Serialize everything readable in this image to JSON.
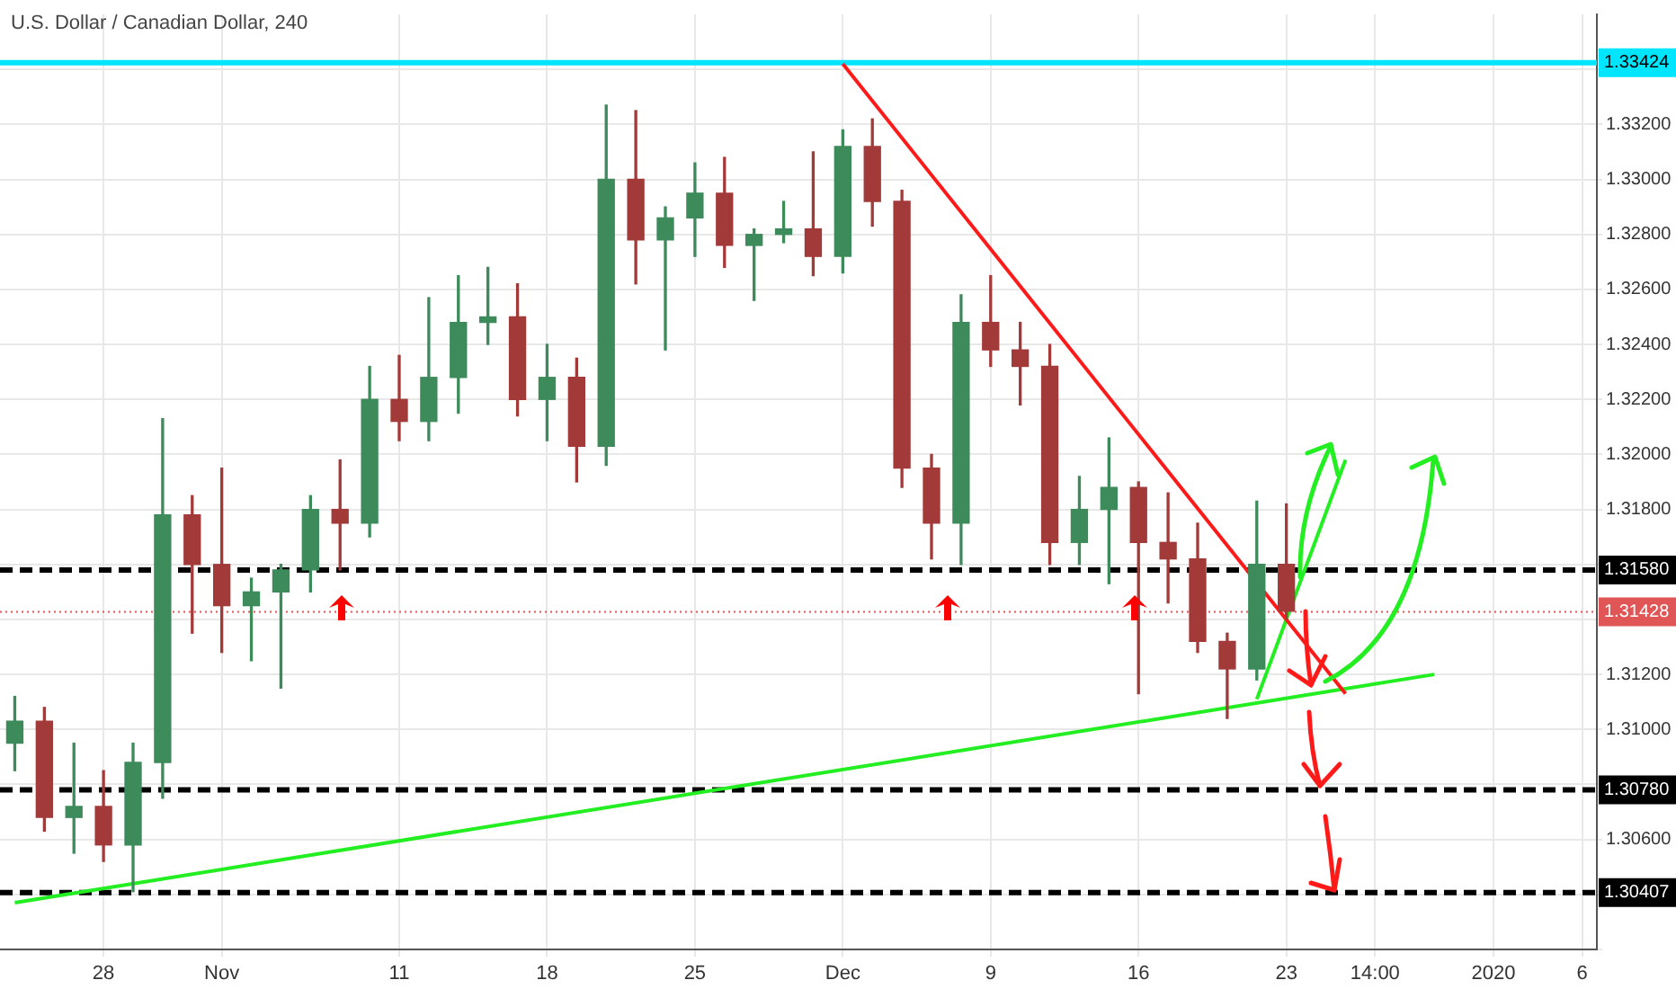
{
  "chart_data": {
    "type": "candlestick",
    "title": "U.S. Dollar / Canadian Dollar, 240",
    "categories": [
      null,
      null,
      null,
      "28",
      null,
      null,
      null,
      "Nov",
      null,
      null,
      null,
      null,
      null,
      "11",
      null,
      null,
      null,
      null,
      "18",
      null,
      null,
      null,
      null,
      "25",
      null,
      null,
      null,
      null,
      "Dec",
      null,
      null,
      null,
      null,
      "9",
      null,
      null,
      null,
      null,
      "16",
      null,
      null,
      null,
      null,
      "23",
      null,
      null,
      "14:00",
      null,
      null,
      null,
      "2020",
      null,
      null,
      "6"
    ],
    "ohlc": [
      [
        1.3095,
        1.3112,
        1.3085,
        1.3103
      ],
      [
        1.3103,
        1.3108,
        1.3063,
        1.3068
      ],
      [
        1.3068,
        1.3095,
        1.3055,
        1.3072
      ],
      [
        1.3072,
        1.3085,
        1.3052,
        1.3058
      ],
      [
        1.3058,
        1.3095,
        1.3041,
        1.3088
      ],
      [
        1.3088,
        1.3213,
        1.3075,
        1.3178
      ],
      [
        1.3178,
        1.3185,
        1.3135,
        1.316
      ],
      [
        1.316,
        1.3195,
        1.3128,
        1.3145
      ],
      [
        1.3145,
        1.3155,
        1.3125,
        1.315
      ],
      [
        1.315,
        1.316,
        1.3115,
        1.3158
      ],
      [
        1.3158,
        1.3185,
        1.315,
        1.318
      ],
      [
        1.318,
        1.3198,
        1.3158,
        1.3175
      ],
      [
        1.3175,
        1.3232,
        1.317,
        1.322
      ],
      [
        1.322,
        1.3236,
        1.3205,
        1.3212
      ],
      [
        1.3212,
        1.3257,
        1.3205,
        1.3228
      ],
      [
        1.3228,
        1.3265,
        1.3215,
        1.3248
      ],
      [
        1.3248,
        1.3268,
        1.324,
        1.325
      ],
      [
        1.325,
        1.3262,
        1.3214,
        1.322
      ],
      [
        1.322,
        1.324,
        1.3205,
        1.3228
      ],
      [
        1.3228,
        1.3235,
        1.319,
        1.3203
      ],
      [
        1.3203,
        1.3327,
        1.3196,
        1.33
      ],
      [
        1.33,
        1.3325,
        1.3262,
        1.3278
      ],
      [
        1.3278,
        1.329,
        1.3238,
        1.3286
      ],
      [
        1.3286,
        1.3306,
        1.3272,
        1.3295
      ],
      [
        1.3295,
        1.3308,
        1.3268,
        1.3276
      ],
      [
        1.3276,
        1.3282,
        1.3256,
        1.328
      ],
      [
        1.328,
        1.3292,
        1.3277,
        1.3282
      ],
      [
        1.3282,
        1.331,
        1.3265,
        1.3272
      ],
      [
        1.3272,
        1.3318,
        1.3266,
        1.3312
      ],
      [
        1.3312,
        1.3322,
        1.3283,
        1.3292
      ],
      [
        1.3292,
        1.3296,
        1.3188,
        1.3195
      ],
      [
        1.3195,
        1.32,
        1.3162,
        1.3175
      ],
      [
        1.3175,
        1.3258,
        1.316,
        1.3248
      ],
      [
        1.3248,
        1.3265,
        1.3232,
        1.3238
      ],
      [
        1.3238,
        1.3248,
        1.3218,
        1.3232
      ],
      [
        1.3232,
        1.324,
        1.316,
        1.3168
      ],
      [
        1.3168,
        1.3192,
        1.316,
        1.318
      ],
      [
        1.318,
        1.3206,
        1.3153,
        1.3188
      ],
      [
        1.3188,
        1.319,
        1.3113,
        1.3168
      ],
      [
        1.3168,
        1.3186,
        1.3146,
        1.3162
      ],
      [
        1.3162,
        1.3175,
        1.3128,
        1.3132
      ],
      [
        1.3132,
        1.3135,
        1.3104,
        1.3122
      ],
      [
        1.3122,
        1.3183,
        1.3118,
        1.316
      ],
      [
        1.316,
        1.3182,
        1.314,
        1.3143
      ],
      null,
      null,
      null,
      null,
      null,
      null,
      null,
      null,
      null,
      null
    ],
    "colors": [
      "#3d8b5a",
      "#a33a3a",
      "#3d8b5a",
      "#a33a3a",
      "#3d8b5a",
      "#3d8b5a",
      "#a33a3a",
      "#a33a3a",
      "#3d8b5a",
      "#3d8b5a",
      "#3d8b5a",
      "#a33a3a",
      "#3d8b5a",
      "#a33a3a",
      "#3d8b5a",
      "#3d8b5a",
      "#3d8b5a",
      "#a33a3a",
      "#3d8b5a",
      "#a33a3a",
      "#3d8b5a",
      "#a33a3a",
      "#3d8b5a",
      "#3d8b5a",
      "#a33a3a",
      "#3d8b5a",
      "#3d8b5a",
      "#a33a3a",
      "#3d8b5a",
      "#a33a3a",
      "#a33a3a",
      "#a33a3a",
      "#3d8b5a",
      "#a33a3a",
      "#a33a3a",
      "#a33a3a",
      "#3d8b5a",
      "#3d8b5a",
      "#a33a3a",
      "#a33a3a",
      "#a33a3a",
      "#a33a3a",
      "#3d8b5a",
      "#a33a3a",
      null,
      null,
      null,
      null,
      null,
      null,
      null,
      null,
      null,
      null
    ],
    "series": [
      {
        "type": "line",
        "color": "#ff1a1a",
        "values": [
          null,
          null,
          null,
          null,
          null,
          null,
          null,
          null,
          null,
          null,
          null,
          null,
          null,
          null,
          null,
          null,
          null,
          null,
          null,
          null,
          null,
          null,
          null,
          null,
          null,
          null,
          null,
          null,
          1.3342,
          null,
          null,
          null,
          null,
          null,
          null,
          null,
          null,
          null,
          null,
          null,
          null,
          null,
          null,
          null,
          null,
          1.3113,
          null,
          null,
          null,
          null,
          null,
          null,
          null,
          null
        ]
      },
      {
        "type": "line",
        "color": "#22ee22",
        "values": [
          1.3037,
          null,
          null,
          null,
          null,
          null,
          null,
          null,
          null,
          null,
          null,
          null,
          null,
          null,
          null,
          null,
          null,
          null,
          null,
          null,
          null,
          null,
          null,
          null,
          null,
          null,
          null,
          null,
          null,
          null,
          null,
          null,
          null,
          null,
          null,
          null,
          null,
          null,
          null,
          null,
          null,
          null,
          null,
          null,
          null,
          null,
          null,
          null,
          1.312,
          null,
          null,
          null,
          null,
          null
        ]
      },
      {
        "type": "line",
        "color": "#22ee22",
        "values": [
          null,
          null,
          null,
          null,
          null,
          null,
          null,
          null,
          null,
          null,
          null,
          null,
          null,
          null,
          null,
          null,
          null,
          null,
          null,
          null,
          null,
          null,
          null,
          null,
          null,
          null,
          null,
          null,
          null,
          null,
          null,
          null,
          null,
          null,
          null,
          null,
          null,
          null,
          null,
          null,
          null,
          null,
          1.3111,
          null,
          null,
          1.3198,
          null,
          null,
          null,
          null,
          null,
          null,
          null,
          null
        ]
      }
    ],
    "ylim": [
      1.302,
      1.336
    ],
    "yticks": [
      {
        "value": 1.302,
        "label": null
      },
      {
        "value": 1.304,
        "label": null
      },
      {
        "value": 1.306,
        "label": "1.30600"
      },
      {
        "value": 1.308,
        "label": null
      },
      {
        "value": 1.31,
        "label": "1.31000"
      },
      {
        "value": 1.312,
        "label": "1.31200"
      },
      {
        "value": 1.314,
        "label": null
      },
      {
        "value": 1.316,
        "label": null
      },
      {
        "value": 1.318,
        "label": "1.31800"
      },
      {
        "value": 1.32,
        "label": "1.32000"
      },
      {
        "value": 1.322,
        "label": "1.32200"
      },
      {
        "value": 1.324,
        "label": "1.32400"
      },
      {
        "value": 1.326,
        "label": "1.32600"
      },
      {
        "value": 1.328,
        "label": "1.32800"
      },
      {
        "value": 1.33,
        "label": "1.33000"
      },
      {
        "value": 1.332,
        "label": "1.33200"
      },
      {
        "value": 1.334,
        "label": null
      }
    ],
    "grid": true,
    "ref_lines": [
      {
        "axis": "y",
        "value": 1.33424,
        "label": "1.33424",
        "color": "#00e5ff",
        "line_style": "solid"
      },
      {
        "axis": "y",
        "value": 1.3158,
        "label": "1.31580",
        "color": "#000000",
        "line_style": "dashed"
      },
      {
        "axis": "y",
        "value": 1.31428,
        "label": "1.31428",
        "color": "#e05555",
        "line_style": "dotted"
      },
      {
        "axis": "y",
        "value": 1.3078,
        "label": "1.30780",
        "color": "#000000",
        "line_style": "dashed"
      },
      {
        "axis": "y",
        "value": 1.30407,
        "label": "1.30407",
        "color": "#000000",
        "line_style": "dashed"
      }
    ]
  }
}
